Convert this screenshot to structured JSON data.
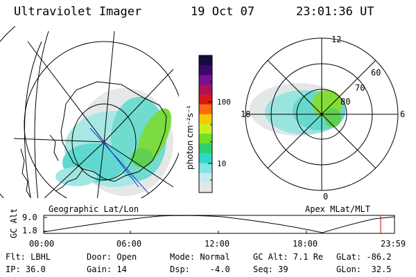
{
  "header": {
    "title": "Ultraviolet Imager",
    "date": "19 Oct 07",
    "time": "23:01:36 UT"
  },
  "left_map": {
    "label": "Geographic Lat/Lon"
  },
  "right_map": {
    "label": "Apex MLat/MLT",
    "mlt_labels": {
      "top": "12",
      "right": "6",
      "bottom": "0",
      "left": "18"
    },
    "lat_labels": [
      "60",
      "70",
      "80"
    ]
  },
  "colorbar": {
    "unit_label": "photon cm⁻²s⁻¹",
    "tick_labels": [
      "100",
      "10"
    ],
    "colors": [
      "#1a0a40",
      "#3a0870",
      "#7a1090",
      "#b0105a",
      "#d81818",
      "#f86a10",
      "#f8c808",
      "#c8f020",
      "#70e028",
      "#30d070",
      "#30d8c8",
      "#80e4e4",
      "#c4ecec",
      "#e6e6e6"
    ]
  },
  "altitude_plot": {
    "y_label": "GC Alt",
    "y_ticks": [
      "9.0",
      "1.8"
    ],
    "x_ticks": [
      "00:00",
      "06:00",
      "12:00",
      "18:00",
      "23:59"
    ],
    "current_marker_color": "#d00000"
  },
  "info": {
    "flt": "Flt: LBHL",
    "ip": "IP: 36.0",
    "door": "Door: Open",
    "gain": "Gain: 14",
    "mode": "Mode: Normal",
    "dsp": "Dsp:    -4.0",
    "gcalt": "GC Alt: 7.1 Re",
    "seq": "Seq: 39",
    "glat": "GLat: -86.2",
    "glon": "GLon:  32.5"
  }
}
